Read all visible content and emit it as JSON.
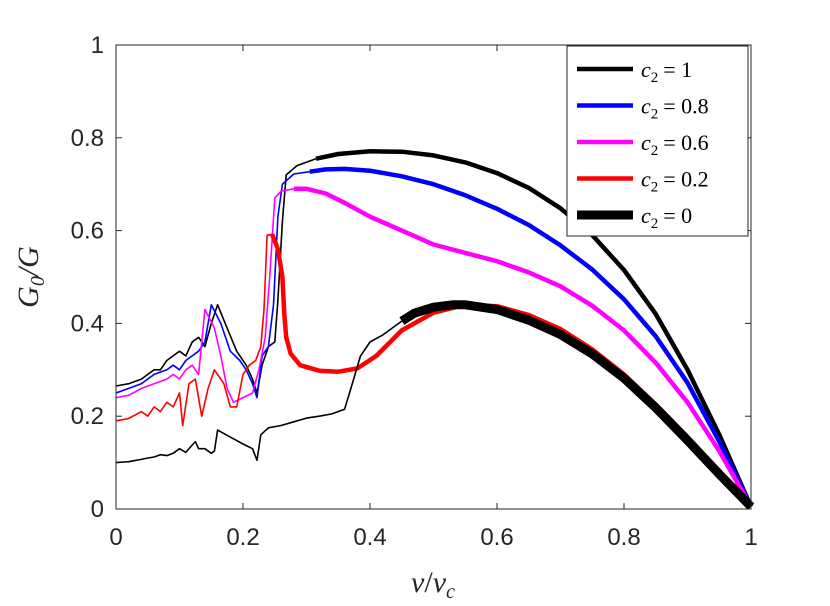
{
  "chart_data": {
    "type": "line",
    "xlabel": "v/v_c",
    "xlabel_main": "v",
    "xlabel_sep": "/",
    "xlabel_sub_base": "v",
    "xlabel_sub": "c",
    "ylabel": "G_0/G",
    "ylabel_main": "G",
    "ylabel_sub": "0",
    "ylabel_sep": "/G",
    "xlim": [
      0,
      1
    ],
    "ylim": [
      0,
      1
    ],
    "xticks": [
      0,
      0.2,
      0.4,
      0.6,
      0.8,
      1
    ],
    "xtick_labels": [
      "0",
      "0.2",
      "0.4",
      "0.6",
      "0.8",
      "1"
    ],
    "yticks": [
      0,
      0.2,
      0.4,
      0.6,
      0.8,
      1
    ],
    "ytick_labels": [
      "0",
      "0.2",
      "0.4",
      "0.6",
      "0.8",
      "1"
    ],
    "legend_position": "top-right",
    "series": [
      {
        "name": "c_2 = 1",
        "label_var": "c",
        "label_sub": "2",
        "label_val": "= 1",
        "color": "#000000",
        "thin_segment": [
          [
            0.0,
            0.265
          ],
          [
            0.02,
            0.27
          ],
          [
            0.04,
            0.28
          ],
          [
            0.05,
            0.29
          ],
          [
            0.06,
            0.3
          ],
          [
            0.07,
            0.3
          ],
          [
            0.08,
            0.32
          ],
          [
            0.09,
            0.33
          ],
          [
            0.1,
            0.34
          ],
          [
            0.11,
            0.33
          ],
          [
            0.12,
            0.36
          ],
          [
            0.13,
            0.37
          ],
          [
            0.14,
            0.35
          ],
          [
            0.15,
            0.4
          ],
          [
            0.16,
            0.44
          ],
          [
            0.175,
            0.39
          ],
          [
            0.19,
            0.34
          ],
          [
            0.205,
            0.31
          ],
          [
            0.215,
            0.28
          ],
          [
            0.222,
            0.25
          ],
          [
            0.23,
            0.31
          ],
          [
            0.24,
            0.35
          ],
          [
            0.25,
            0.36
          ],
          [
            0.255,
            0.45
          ],
          [
            0.262,
            0.62
          ],
          [
            0.268,
            0.72
          ],
          [
            0.285,
            0.74
          ],
          [
            0.315,
            0.755
          ]
        ],
        "thick_segment": [
          [
            0.315,
            0.755
          ],
          [
            0.35,
            0.765
          ],
          [
            0.4,
            0.771
          ],
          [
            0.45,
            0.77
          ],
          [
            0.5,
            0.762
          ],
          [
            0.55,
            0.747
          ],
          [
            0.6,
            0.724
          ],
          [
            0.65,
            0.692
          ],
          [
            0.7,
            0.648
          ],
          [
            0.75,
            0.59
          ],
          [
            0.8,
            0.515
          ],
          [
            0.85,
            0.42
          ],
          [
            0.9,
            0.3
          ],
          [
            0.95,
            0.16
          ],
          [
            1.0,
            0.005
          ]
        ]
      },
      {
        "name": "c_2 = 0.8",
        "label_var": "c",
        "label_sub": "2",
        "label_val": "= 0.8",
        "color": "#0000ff",
        "thin_segment": [
          [
            0.0,
            0.25
          ],
          [
            0.02,
            0.26
          ],
          [
            0.04,
            0.27
          ],
          [
            0.06,
            0.29
          ],
          [
            0.08,
            0.3
          ],
          [
            0.09,
            0.31
          ],
          [
            0.1,
            0.3
          ],
          [
            0.11,
            0.32
          ],
          [
            0.12,
            0.33
          ],
          [
            0.13,
            0.34
          ],
          [
            0.14,
            0.36
          ],
          [
            0.15,
            0.44
          ],
          [
            0.165,
            0.4
          ],
          [
            0.18,
            0.34
          ],
          [
            0.195,
            0.32
          ],
          [
            0.205,
            0.3
          ],
          [
            0.215,
            0.27
          ],
          [
            0.222,
            0.24
          ],
          [
            0.23,
            0.33
          ],
          [
            0.24,
            0.35
          ],
          [
            0.248,
            0.44
          ],
          [
            0.255,
            0.63
          ],
          [
            0.262,
            0.7
          ],
          [
            0.28,
            0.722
          ],
          [
            0.305,
            0.727
          ]
        ],
        "thick_segment": [
          [
            0.305,
            0.727
          ],
          [
            0.33,
            0.732
          ],
          [
            0.36,
            0.733
          ],
          [
            0.4,
            0.729
          ],
          [
            0.45,
            0.717
          ],
          [
            0.5,
            0.7
          ],
          [
            0.55,
            0.676
          ],
          [
            0.6,
            0.647
          ],
          [
            0.65,
            0.612
          ],
          [
            0.7,
            0.568
          ],
          [
            0.75,
            0.516
          ],
          [
            0.8,
            0.452
          ],
          [
            0.85,
            0.372
          ],
          [
            0.9,
            0.272
          ],
          [
            0.95,
            0.145
          ],
          [
            1.0,
            0.005
          ]
        ]
      },
      {
        "name": "c_2 = 0.6",
        "label_var": "c",
        "label_sub": "2",
        "label_val": "= 0.6",
        "color": "#ff00ff",
        "thin_segment": [
          [
            0.0,
            0.24
          ],
          [
            0.02,
            0.245
          ],
          [
            0.04,
            0.26
          ],
          [
            0.06,
            0.27
          ],
          [
            0.08,
            0.28
          ],
          [
            0.09,
            0.29
          ],
          [
            0.1,
            0.28
          ],
          [
            0.11,
            0.3
          ],
          [
            0.12,
            0.31
          ],
          [
            0.13,
            0.29
          ],
          [
            0.14,
            0.43
          ],
          [
            0.155,
            0.39
          ],
          [
            0.165,
            0.33
          ],
          [
            0.175,
            0.26
          ],
          [
            0.185,
            0.23
          ],
          [
            0.2,
            0.24
          ],
          [
            0.215,
            0.25
          ],
          [
            0.225,
            0.3
          ],
          [
            0.235,
            0.37
          ],
          [
            0.242,
            0.5
          ],
          [
            0.25,
            0.67
          ],
          [
            0.26,
            0.685
          ],
          [
            0.28,
            0.69
          ]
        ],
        "thick_segment": [
          [
            0.28,
            0.69
          ],
          [
            0.3,
            0.69
          ],
          [
            0.33,
            0.68
          ],
          [
            0.36,
            0.66
          ],
          [
            0.4,
            0.63
          ],
          [
            0.45,
            0.6
          ],
          [
            0.5,
            0.57
          ],
          [
            0.55,
            0.552
          ],
          [
            0.6,
            0.534
          ],
          [
            0.65,
            0.51
          ],
          [
            0.7,
            0.48
          ],
          [
            0.75,
            0.438
          ],
          [
            0.8,
            0.385
          ],
          [
            0.85,
            0.315
          ],
          [
            0.9,
            0.23
          ],
          [
            0.95,
            0.125
          ],
          [
            1.0,
            0.005
          ]
        ]
      },
      {
        "name": "c_2 = 0.2",
        "label_var": "c",
        "label_sub": "2",
        "label_val": "= 0.2",
        "color": "#ff0000",
        "thin_segment": [
          [
            0.0,
            0.19
          ],
          [
            0.02,
            0.195
          ],
          [
            0.04,
            0.21
          ],
          [
            0.05,
            0.2
          ],
          [
            0.06,
            0.22
          ],
          [
            0.07,
            0.21
          ],
          [
            0.08,
            0.23
          ],
          [
            0.09,
            0.22
          ],
          [
            0.1,
            0.25
          ],
          [
            0.105,
            0.18
          ],
          [
            0.115,
            0.27
          ],
          [
            0.125,
            0.28
          ],
          [
            0.135,
            0.2
          ],
          [
            0.145,
            0.26
          ],
          [
            0.155,
            0.3
          ],
          [
            0.17,
            0.27
          ],
          [
            0.18,
            0.22
          ],
          [
            0.19,
            0.22
          ],
          [
            0.2,
            0.29
          ],
          [
            0.21,
            0.31
          ],
          [
            0.22,
            0.32
          ],
          [
            0.228,
            0.35
          ],
          [
            0.233,
            0.43
          ],
          [
            0.238,
            0.59
          ],
          [
            0.246,
            0.592
          ]
        ],
        "thick_segment": [
          [
            0.246,
            0.592
          ],
          [
            0.255,
            0.56
          ],
          [
            0.262,
            0.5
          ],
          [
            0.265,
            0.42
          ],
          [
            0.268,
            0.37
          ],
          [
            0.275,
            0.335
          ],
          [
            0.29,
            0.31
          ],
          [
            0.32,
            0.298
          ],
          [
            0.35,
            0.296
          ],
          [
            0.38,
            0.303
          ],
          [
            0.41,
            0.33
          ],
          [
            0.45,
            0.385
          ],
          [
            0.5,
            0.423
          ],
          [
            0.55,
            0.44
          ],
          [
            0.6,
            0.437
          ],
          [
            0.65,
            0.418
          ],
          [
            0.7,
            0.388
          ],
          [
            0.75,
            0.344
          ],
          [
            0.8,
            0.29
          ],
          [
            0.85,
            0.225
          ],
          [
            0.9,
            0.155
          ],
          [
            0.95,
            0.08
          ],
          [
            1.0,
            0.005
          ]
        ]
      },
      {
        "name": "c_2 = 0",
        "label_var": "c",
        "label_sub": "2",
        "label_val": "= 0",
        "color": "#000000",
        "thin_segment": [
          [
            0.0,
            0.1
          ],
          [
            0.02,
            0.102
          ],
          [
            0.04,
            0.107
          ],
          [
            0.05,
            0.11
          ],
          [
            0.06,
            0.112
          ],
          [
            0.07,
            0.117
          ],
          [
            0.08,
            0.115
          ],
          [
            0.09,
            0.12
          ],
          [
            0.1,
            0.13
          ],
          [
            0.11,
            0.122
          ],
          [
            0.12,
            0.138
          ],
          [
            0.125,
            0.145
          ],
          [
            0.13,
            0.13
          ],
          [
            0.14,
            0.13
          ],
          [
            0.15,
            0.12
          ],
          [
            0.155,
            0.125
          ],
          [
            0.16,
            0.17
          ],
          [
            0.18,
            0.155
          ],
          [
            0.2,
            0.14
          ],
          [
            0.215,
            0.13
          ],
          [
            0.222,
            0.105
          ],
          [
            0.228,
            0.16
          ],
          [
            0.24,
            0.175
          ],
          [
            0.26,
            0.18
          ],
          [
            0.28,
            0.188
          ],
          [
            0.3,
            0.196
          ],
          [
            0.32,
            0.2
          ],
          [
            0.34,
            0.205
          ],
          [
            0.36,
            0.215
          ],
          [
            0.37,
            0.26
          ],
          [
            0.385,
            0.33
          ],
          [
            0.4,
            0.36
          ],
          [
            0.42,
            0.375
          ],
          [
            0.45,
            0.405
          ]
        ],
        "thick_segment": [
          [
            0.45,
            0.405
          ],
          [
            0.47,
            0.422
          ],
          [
            0.5,
            0.435
          ],
          [
            0.53,
            0.44
          ],
          [
            0.55,
            0.44
          ],
          [
            0.6,
            0.43
          ],
          [
            0.65,
            0.407
          ],
          [
            0.7,
            0.376
          ],
          [
            0.75,
            0.334
          ],
          [
            0.8,
            0.282
          ],
          [
            0.85,
            0.218
          ],
          [
            0.9,
            0.148
          ],
          [
            0.95,
            0.075
          ],
          [
            1.0,
            0.005
          ]
        ]
      }
    ]
  }
}
